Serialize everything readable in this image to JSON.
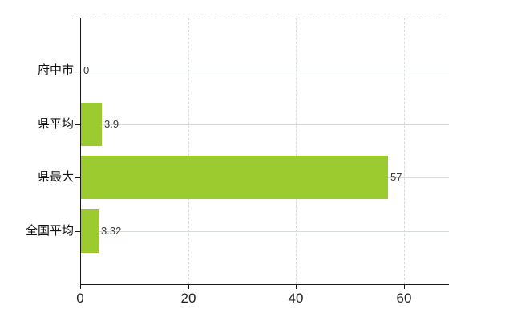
{
  "chart_data": {
    "type": "bar",
    "orientation": "horizontal",
    "title": "",
    "xlabel": "",
    "ylabel": "",
    "categories": [
      "府中市",
      "県平均",
      "県最大",
      "全国平均"
    ],
    "values": [
      0,
      3.9,
      57,
      3.32
    ],
    "value_labels": [
      "0",
      "3.9",
      "57",
      "3.32"
    ],
    "xlim": [
      0,
      68.4
    ],
    "x_ticks": [
      0,
      20,
      40,
      60
    ],
    "x_tick_labels": [
      "0",
      "20",
      "40",
      "60"
    ],
    "legend": null,
    "grid": {
      "horizontal_solid_per_category": true,
      "vertical_dashed_at_ticks": true,
      "dashed_top_border": true
    },
    "colors": {
      "bar": "#9bcb2f",
      "h_gridline": "#d3ddd3",
      "v_gridline": "#dadada",
      "axis": "#1a1a1a",
      "category_text": "#111111",
      "tick_text": "#222222",
      "value_text": "#3a3a3a",
      "background": "#ffffff"
    }
  }
}
